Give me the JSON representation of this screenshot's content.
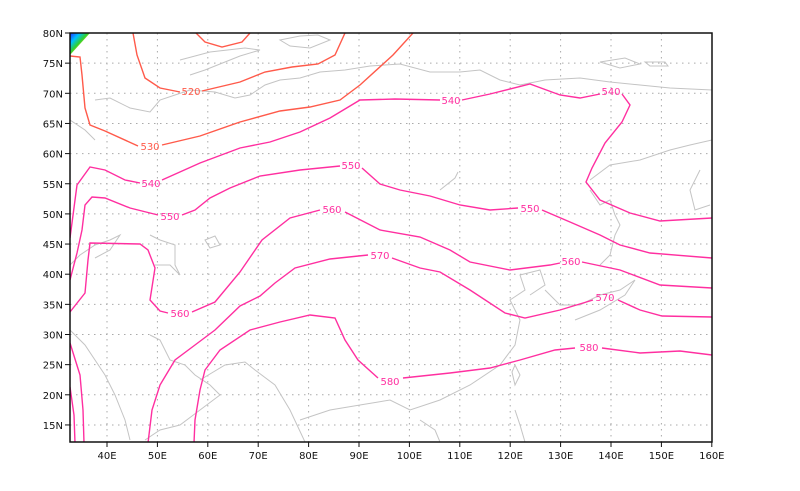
{
  "map": {
    "lon_ticks": [
      "40E",
      "50E",
      "60E",
      "70E",
      "80E",
      "90E",
      "100E",
      "110E",
      "120E",
      "130E",
      "140E",
      "150E",
      "160E"
    ],
    "lon_values": [
      40,
      50,
      60,
      70,
      80,
      90,
      100,
      110,
      120,
      130,
      140,
      150,
      160
    ],
    "lat_ticks": [
      "80N",
      "75N",
      "70N",
      "65N",
      "60N",
      "55N",
      "50N",
      "45N",
      "40N",
      "35N",
      "30N",
      "25N",
      "20N",
      "15N"
    ],
    "lat_values": [
      80,
      75,
      70,
      65,
      60,
      55,
      50,
      45,
      40,
      35,
      30,
      25,
      20,
      15
    ],
    "grid": "dotted",
    "colors": {
      "low_contours": "#ff5a4a",
      "high_contours": "#ff2fa0",
      "coastline": "#c4c4c4"
    },
    "contour_levels": [
      520,
      530,
      540,
      550,
      560,
      570,
      580
    ],
    "labels": {
      "c520": "520",
      "c530": "530",
      "c540a": "540",
      "c540b": "540",
      "c540c": "540",
      "c550a": "550",
      "c550b": "550",
      "c550c": "550",
      "c560a": "560",
      "c560b": "560",
      "c560c": "560",
      "c570a": "570",
      "c570b": "570",
      "c580a": "580",
      "c580b": "580"
    }
  }
}
